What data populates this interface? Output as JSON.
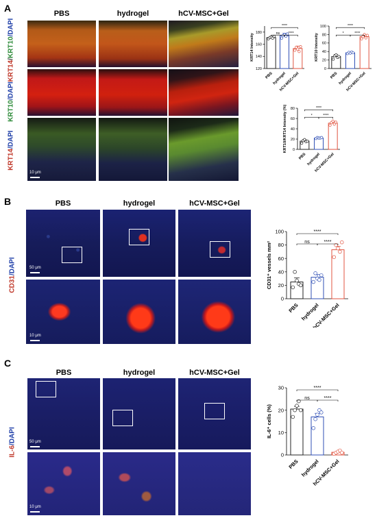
{
  "panel_labels": {
    "a": "A",
    "b": "B",
    "c": "C"
  },
  "groups": [
    "PBS",
    "hydrogel",
    "hCV-MSC+Gel"
  ],
  "panel_a": {
    "row_labels": [
      {
        "parts": [
          {
            "t": "KRT14",
            "c": "#c0392b"
          },
          {
            "t": "/",
            "c": "#333"
          },
          {
            "t": "KRT10",
            "c": "#2e8b3a"
          },
          {
            "t": "/DAPI",
            "c": "#1f3fa8"
          }
        ]
      },
      {
        "parts": [
          {
            "t": "KRT10",
            "c": "#2e8b3a"
          },
          {
            "t": "/DAPI",
            "c": "#1f3fa8"
          }
        ]
      },
      {
        "parts": [
          {
            "t": "KRT14",
            "c": "#c0392b"
          },
          {
            "t": "/DAPI",
            "c": "#1f3fa8"
          }
        ]
      }
    ],
    "scale": "10 μm"
  },
  "panel_b": {
    "row_label": {
      "parts": [
        {
          "t": "CD31",
          "c": "#c0392b"
        },
        {
          "t": "/DAPI",
          "c": "#1f3fa8"
        }
      ]
    },
    "scale_top": "50 μm",
    "scale_bottom": "10 μm"
  },
  "panel_c": {
    "row_label": {
      "parts": [
        {
          "t": "IL-6",
          "c": "#c0392b"
        },
        {
          "t": "/DAPI",
          "c": "#1f3fa8"
        }
      ]
    },
    "scale_top": "50 μm",
    "scale_bottom": "10 μm"
  },
  "colors": {
    "pbs": "#222222",
    "hydrogel": "#2f4fb5",
    "msc": "#e0533f"
  },
  "chart_data": [
    {
      "id": "krt14",
      "type": "bar",
      "categories": [
        "PBS",
        "hydrogel",
        "hCV-MSC+Gel"
      ],
      "values": [
        171,
        174,
        153
      ],
      "errors": [
        2,
        4,
        4
      ],
      "points": [
        [
          169,
          171,
          172,
          170,
          173
        ],
        [
          170,
          174,
          176,
          173,
          177
        ],
        [
          150,
          155,
          152,
          148,
          156
        ]
      ],
      "ylabel": "KRT14 Intensity",
      "ylim": [
        120,
        190
      ],
      "yticks": [
        120,
        140,
        160,
        180
      ],
      "significance": [
        {
          "from": 0,
          "to": 1,
          "label": "ns"
        },
        {
          "from": 1,
          "to": 2,
          "label": "****"
        },
        {
          "from": 0,
          "to": 2,
          "label": "****"
        }
      ]
    },
    {
      "id": "krt10",
      "type": "bar",
      "categories": [
        "PBS",
        "hydrogel",
        "hCV-MSC+Gel"
      ],
      "values": [
        28,
        37,
        75
      ],
      "errors": [
        5,
        2,
        4
      ],
      "points": [
        [
          22,
          30,
          32,
          26,
          28
        ],
        [
          35,
          38,
          36,
          39,
          37
        ],
        [
          70,
          75,
          80,
          72,
          78
        ]
      ],
      "ylabel": "KRT10 Intensity",
      "ylim": [
        0,
        100
      ],
      "yticks": [
        0,
        20,
        40,
        60,
        80,
        100
      ],
      "significance": [
        {
          "from": 0,
          "to": 1,
          "label": "*"
        },
        {
          "from": 1,
          "to": 2,
          "label": "****"
        },
        {
          "from": 0,
          "to": 2,
          "label": "****"
        }
      ]
    },
    {
      "id": "ratio",
      "type": "bar",
      "categories": [
        "PBS",
        "hydrogel",
        "hCV-MSC+Gel"
      ],
      "values": [
        16,
        22,
        51
      ],
      "errors": [
        3,
        1,
        3
      ],
      "points": [
        [
          12,
          17,
          19,
          15,
          16
        ],
        [
          21,
          23,
          22,
          22,
          23
        ],
        [
          47,
          52,
          55,
          49,
          53
        ]
      ],
      "ylabel": "KRT10/KRT14 Intensity (%)",
      "ylim": [
        0,
        80
      ],
      "yticks": [
        0,
        20,
        40,
        60,
        80
      ],
      "significance": [
        {
          "from": 0,
          "to": 1,
          "label": "*"
        },
        {
          "from": 1,
          "to": 2,
          "label": "****"
        },
        {
          "from": 0,
          "to": 2,
          "label": "****"
        }
      ]
    },
    {
      "id": "cd31",
      "type": "bar",
      "categories": [
        "PBS",
        "hydrogel",
        "hCV-MSC+Gel"
      ],
      "values": [
        25,
        32,
        73
      ],
      "errors": [
        6,
        4,
        5
      ],
      "points": [
        [
          17,
          40,
          27,
          22,
          20
        ],
        [
          25,
          38,
          30,
          28,
          35
        ],
        [
          62,
          80,
          75,
          70,
          84
        ]
      ],
      "ylabel": "CD31⁺ vessels mm²",
      "ylim": [
        0,
        100
      ],
      "yticks": [
        0,
        20,
        40,
        60,
        80,
        100
      ],
      "significance": [
        {
          "from": 0,
          "to": 1,
          "label": "ns"
        },
        {
          "from": 1,
          "to": 2,
          "label": "****"
        },
        {
          "from": 0,
          "to": 2,
          "label": "****"
        }
      ]
    },
    {
      "id": "il6",
      "type": "bar",
      "categories": [
        "PBS",
        "hydrogel",
        "hCV-MSC+Gel"
      ],
      "values": [
        20.5,
        17,
        1.2
      ],
      "errors": [
        1.2,
        1.6,
        0.3
      ],
      "points": [
        [
          17,
          20,
          22,
          24,
          20
        ],
        [
          12,
          16,
          18,
          20,
          19
        ],
        [
          0.5,
          1,
          1.5,
          2,
          1
        ]
      ],
      "ylabel": "IL-6⁺ cells (%)",
      "ylim": [
        0,
        30
      ],
      "yticks": [
        0,
        10,
        20,
        30
      ],
      "significance": [
        {
          "from": 0,
          "to": 1,
          "label": "ns"
        },
        {
          "from": 1,
          "to": 2,
          "label": "****"
        },
        {
          "from": 0,
          "to": 2,
          "label": "****"
        }
      ]
    }
  ]
}
